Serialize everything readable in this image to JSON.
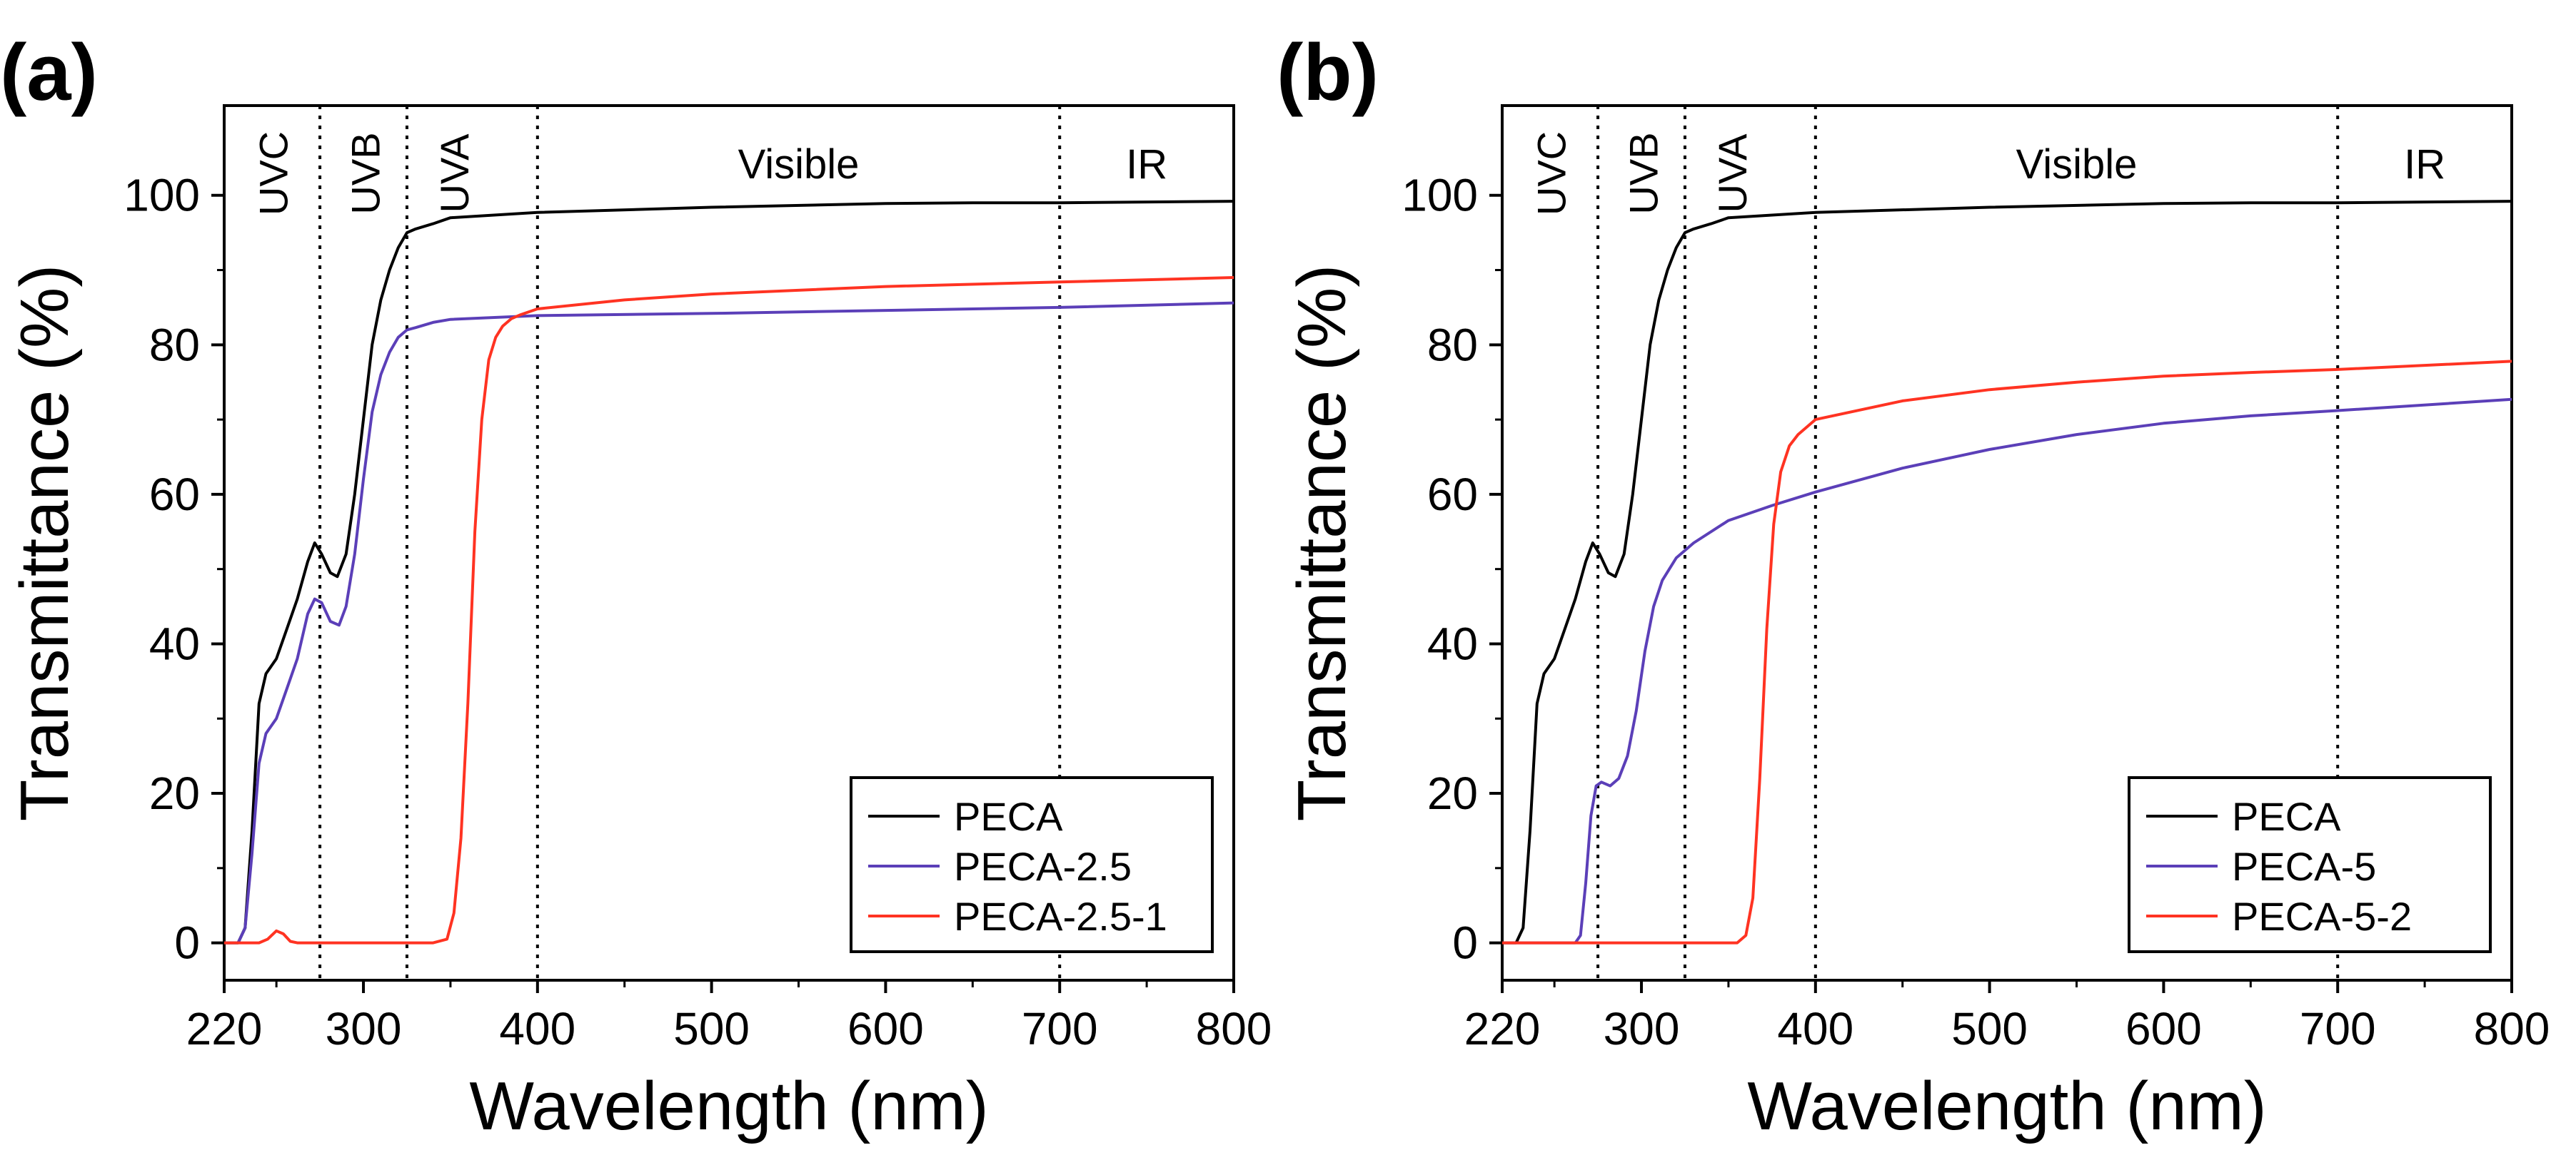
{
  "chart_data": [
    {
      "type": "line",
      "panel_label": "(a)",
      "xlabel": "Wavelength (nm)",
      "ylabel": "Transmittance (%)",
      "xlim": [
        220,
        800
      ],
      "ylim": [
        -5,
        112
      ],
      "xticks": [
        220,
        300,
        400,
        500,
        600,
        700,
        800
      ],
      "yticks": [
        0,
        20,
        40,
        60,
        80,
        100
      ],
      "regions": [
        {
          "label": "UVC",
          "x": 248,
          "orientation": "vertical"
        },
        {
          "label": "UVB",
          "x": 301,
          "orientation": "vertical"
        },
        {
          "label": "UVA",
          "x": 352,
          "orientation": "vertical"
        },
        {
          "label": "Visible",
          "x": 550,
          "orientation": "horizontal"
        },
        {
          "label": "IR",
          "x": 750,
          "orientation": "horizontal"
        }
      ],
      "dividers": [
        275,
        325,
        400,
        700
      ],
      "legend_position": "bottom-right",
      "series": [
        {
          "name": "PECA",
          "color": "#000000",
          "points": [
            [
              220,
              0
            ],
            [
              228,
              0
            ],
            [
              232,
              2
            ],
            [
              236,
              15
            ],
            [
              240,
              32
            ],
            [
              244,
              36
            ],
            [
              250,
              38
            ],
            [
              256,
              42
            ],
            [
              262,
              46
            ],
            [
              268,
              51
            ],
            [
              272,
              53.5
            ],
            [
              276,
              52
            ],
            [
              281,
              49.5
            ],
            [
              285,
              49
            ],
            [
              290,
              52
            ],
            [
              295,
              60
            ],
            [
              300,
              70
            ],
            [
              305,
              80
            ],
            [
              310,
              86
            ],
            [
              315,
              90
            ],
            [
              320,
              93
            ],
            [
              325,
              95
            ],
            [
              330,
              95.5
            ],
            [
              340,
              96.2
            ],
            [
              350,
              97
            ],
            [
              400,
              97.7
            ],
            [
              500,
              98.4
            ],
            [
              600,
              98.9
            ],
            [
              650,
              99
            ],
            [
              700,
              99
            ],
            [
              800,
              99.2
            ]
          ]
        },
        {
          "name": "PECA-2.5",
          "color": "#5b3fb8",
          "points": [
            [
              220,
              0
            ],
            [
              228,
              0
            ],
            [
              232,
              2
            ],
            [
              236,
              12
            ],
            [
              240,
              24
            ],
            [
              244,
              28
            ],
            [
              250,
              30
            ],
            [
              256,
              34
            ],
            [
              262,
              38
            ],
            [
              268,
              44
            ],
            [
              272,
              46
            ],
            [
              276,
              45.5
            ],
            [
              281,
              43
            ],
            [
              286,
              42.5
            ],
            [
              290,
              45
            ],
            [
              295,
              52
            ],
            [
              300,
              62
            ],
            [
              305,
              71
            ],
            [
              310,
              76
            ],
            [
              315,
              79
            ],
            [
              320,
              81
            ],
            [
              325,
              82
            ],
            [
              330,
              82.3
            ],
            [
              340,
              83
            ],
            [
              350,
              83.4
            ],
            [
              400,
              83.9
            ],
            [
              500,
              84.2
            ],
            [
              600,
              84.6
            ],
            [
              700,
              85
            ],
            [
              800,
              85.6
            ]
          ]
        },
        {
          "name": "PECA-2.5-1",
          "color": "#ff3322",
          "points": [
            [
              220,
              0
            ],
            [
              240,
              0
            ],
            [
              245,
              0.5
            ],
            [
              250,
              1.6
            ],
            [
              254,
              1.2
            ],
            [
              258,
              0.2
            ],
            [
              262,
              0
            ],
            [
              340,
              0
            ],
            [
              348,
              0.5
            ],
            [
              352,
              4
            ],
            [
              356,
              14
            ],
            [
              360,
              32
            ],
            [
              364,
              55
            ],
            [
              368,
              70
            ],
            [
              372,
              78
            ],
            [
              376,
              81
            ],
            [
              380,
              82.5
            ],
            [
              385,
              83.5
            ],
            [
              390,
              84
            ],
            [
              400,
              84.8
            ],
            [
              450,
              86
            ],
            [
              500,
              86.8
            ],
            [
              600,
              87.8
            ],
            [
              700,
              88.4
            ],
            [
              800,
              89
            ]
          ]
        }
      ]
    },
    {
      "type": "line",
      "panel_label": "(b)",
      "xlabel": "Wavelength (nm)",
      "ylabel": "Transmittance (%)",
      "xlim": [
        220,
        800
      ],
      "ylim": [
        -5,
        112
      ],
      "xticks": [
        220,
        300,
        400,
        500,
        600,
        700,
        800
      ],
      "yticks": [
        0,
        20,
        40,
        60,
        80,
        100
      ],
      "regions": [
        {
          "label": "UVC",
          "x": 248,
          "orientation": "vertical"
        },
        {
          "label": "UVB",
          "x": 301,
          "orientation": "vertical"
        },
        {
          "label": "UVA",
          "x": 352,
          "orientation": "vertical"
        },
        {
          "label": "Visible",
          "x": 550,
          "orientation": "horizontal"
        },
        {
          "label": "IR",
          "x": 750,
          "orientation": "horizontal"
        }
      ],
      "dividers": [
        275,
        325,
        400,
        700
      ],
      "legend_position": "bottom-right",
      "series": [
        {
          "name": "PECA",
          "color": "#000000",
          "points": [
            [
              220,
              0
            ],
            [
              228,
              0
            ],
            [
              232,
              2
            ],
            [
              236,
              15
            ],
            [
              240,
              32
            ],
            [
              244,
              36
            ],
            [
              250,
              38
            ],
            [
              256,
              42
            ],
            [
              262,
              46
            ],
            [
              268,
              51
            ],
            [
              272,
              53.5
            ],
            [
              276,
              52
            ],
            [
              281,
              49.5
            ],
            [
              285,
              49
            ],
            [
              290,
              52
            ],
            [
              295,
              60
            ],
            [
              300,
              70
            ],
            [
              305,
              80
            ],
            [
              310,
              86
            ],
            [
              315,
              90
            ],
            [
              320,
              93
            ],
            [
              325,
              95
            ],
            [
              330,
              95.5
            ],
            [
              340,
              96.2
            ],
            [
              350,
              97
            ],
            [
              400,
              97.7
            ],
            [
              500,
              98.4
            ],
            [
              600,
              98.9
            ],
            [
              650,
              99
            ],
            [
              700,
              99
            ],
            [
              800,
              99.2
            ]
          ]
        },
        {
          "name": "PECA-5",
          "color": "#5b3fb8",
          "points": [
            [
              220,
              0
            ],
            [
              262,
              0
            ],
            [
              265,
              1
            ],
            [
              268,
              8
            ],
            [
              271,
              17
            ],
            [
              274,
              21
            ],
            [
              277,
              21.5
            ],
            [
              282,
              21
            ],
            [
              287,
              22
            ],
            [
              292,
              25
            ],
            [
              297,
              31
            ],
            [
              302,
              39
            ],
            [
              307,
              45
            ],
            [
              312,
              48.5
            ],
            [
              320,
              51.5
            ],
            [
              330,
              53.5
            ],
            [
              350,
              56.5
            ],
            [
              375,
              58.5
            ],
            [
              400,
              60.3
            ],
            [
              450,
              63.5
            ],
            [
              500,
              66
            ],
            [
              550,
              68
            ],
            [
              600,
              69.5
            ],
            [
              650,
              70.5
            ],
            [
              700,
              71.2
            ],
            [
              800,
              72.7
            ]
          ]
        },
        {
          "name": "PECA-5-2",
          "color": "#ff3322",
          "points": [
            [
              220,
              0
            ],
            [
              355,
              0
            ],
            [
              360,
              1
            ],
            [
              364,
              6
            ],
            [
              368,
              22
            ],
            [
              372,
              42
            ],
            [
              376,
              56
            ],
            [
              380,
              63
            ],
            [
              385,
              66.5
            ],
            [
              390,
              68
            ],
            [
              395,
              69
            ],
            [
              400,
              70
            ],
            [
              450,
              72.5
            ],
            [
              500,
              74
            ],
            [
              550,
              75
            ],
            [
              600,
              75.8
            ],
            [
              650,
              76.3
            ],
            [
              700,
              76.7
            ],
            [
              800,
              77.8
            ]
          ]
        }
      ]
    }
  ]
}
